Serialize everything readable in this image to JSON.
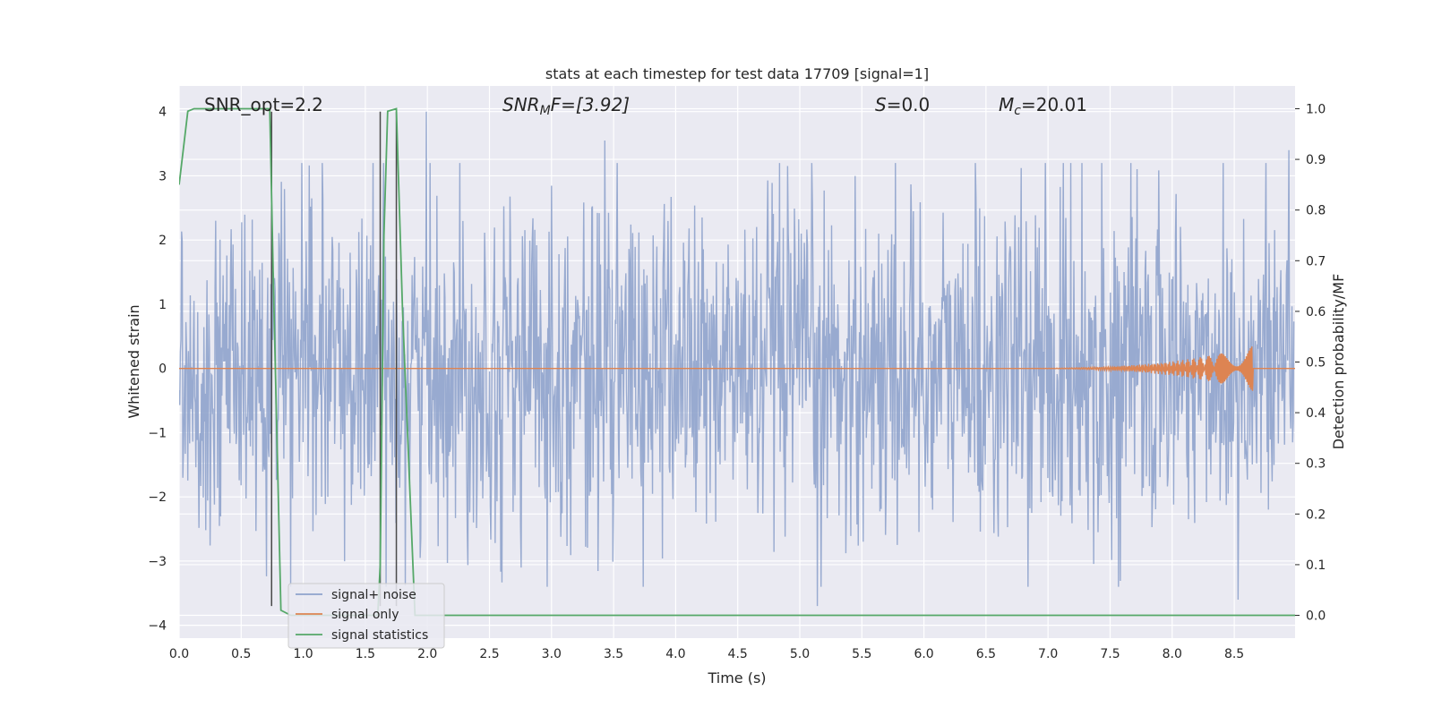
{
  "chart_data": {
    "type": "line",
    "title": "stats at each timestep for test data 17709 [signal=1]",
    "xlabel": "Time (s)",
    "ylabel_left": "Whitened strain",
    "ylabel_right": "Detection probability/MF",
    "xlim": [
      0.0,
      8.99
    ],
    "ylim_left": [
      -4.2,
      4.4
    ],
    "ylim_right": [
      -0.045,
      1.045
    ],
    "x_ticks": [
      0.0,
      0.5,
      1.0,
      1.5,
      2.0,
      2.5,
      3.0,
      3.5,
      4.0,
      4.5,
      5.0,
      5.5,
      6.0,
      6.5,
      7.0,
      7.5,
      8.0,
      8.5
    ],
    "x_tick_labels": [
      "0.0",
      "0.5",
      "1.0",
      "1.5",
      "2.0",
      "2.5",
      "3.0",
      "3.5",
      "4.0",
      "4.5",
      "5.0",
      "5.5",
      "6.0",
      "6.5",
      "7.0",
      "7.5",
      "8.0",
      "8.5"
    ],
    "y_left_ticks": [
      4,
      3,
      2,
      1,
      0,
      -1,
      -2,
      -3,
      -4
    ],
    "y_left_tick_labels": [
      "4",
      "3",
      "2",
      "1",
      "0",
      "−1",
      "−2",
      "−3",
      "−4"
    ],
    "y_right_ticks": [
      1.0,
      0.9,
      0.8,
      0.7,
      0.6,
      0.5,
      0.4,
      0.3,
      0.2,
      0.1,
      0.0
    ],
    "y_right_tick_labels": [
      "1.0",
      "0.9",
      "0.8",
      "0.7",
      "0.6",
      "0.5",
      "0.4",
      "0.3",
      "0.2",
      "0.1",
      "0.0"
    ],
    "grid": true,
    "legend_position": "lower-left",
    "annotations": {
      "snr_opt": "SNR_opt=2.2",
      "snr_mf_main": "SNR",
      "snr_mf_sub": "M",
      "snr_mf_rest": "F=[3.92]",
      "s_main": "S",
      "s_rest": "=0.0",
      "mc_main": "M",
      "mc_sub": "c",
      "mc_rest": "=20.01"
    },
    "series": [
      {
        "name": "signal+ noise",
        "color": "#8fa3cc",
        "axis": "left",
        "style": "noise",
        "sample_count": 1800,
        "envelope_typical": 1.3,
        "peaks": [
          [
            1.99,
            4.0
          ],
          [
            3.43,
            3.55
          ],
          [
            5.14,
            -3.7
          ],
          [
            8.53,
            -3.6
          ],
          [
            8.94,
            3.4
          ]
        ]
      },
      {
        "name": "signal only",
        "color": "#dd8452",
        "axis": "left",
        "style": "chirp",
        "chirp_start": 6.6,
        "chirp_end": 8.65,
        "chirp_peak_amplitude": 0.35
      },
      {
        "name": "signal statistics",
        "color": "#55a868",
        "axis": "right",
        "x": [
          0.0,
          0.07,
          0.12,
          0.2,
          0.4,
          0.6,
          0.7,
          0.73,
          0.76,
          0.82,
          0.9,
          1.6,
          1.62,
          1.65,
          1.68,
          1.75,
          1.8,
          1.85,
          1.9,
          2.2,
          8.99
        ],
        "y": [
          0.85,
          0.995,
          1.0,
          1.0,
          1.0,
          1.0,
          1.0,
          1.0,
          0.65,
          0.01,
          0.0,
          0.0,
          0.1,
          0.75,
          0.995,
          1.0,
          0.6,
          0.3,
          0.0,
          0.0,
          0.0
        ]
      }
    ],
    "vertical_lines": [
      {
        "x": 0.745,
        "ymin": -3.7,
        "ymax": 4.0,
        "color": "#4a4a4a"
      },
      {
        "x": 1.62,
        "ymin": -3.7,
        "ymax": 4.0,
        "color": "#4a4a4a"
      },
      {
        "x": 1.75,
        "ymin": -3.7,
        "ymax": 4.0,
        "color": "#4a4a4a"
      }
    ]
  }
}
